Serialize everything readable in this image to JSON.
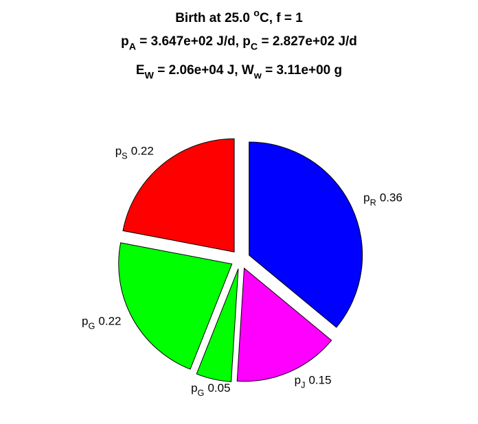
{
  "chart_data": {
    "type": "pie",
    "title": [
      [
        {
          "text": "Birth at 25.0 "
        },
        {
          "text": "o",
          "sup": true
        },
        {
          "text": "C, f = 1"
        }
      ],
      [
        {
          "text": "p"
        },
        {
          "text": "A",
          "sub": true
        },
        {
          "text": " = 3.647e+02 J/d, p"
        },
        {
          "text": "C",
          "sub": true
        },
        {
          "text": " = 2.827e+02 J/d"
        }
      ],
      [
        {
          "text": "E"
        },
        {
          "text": "W",
          "sub": true
        },
        {
          "text": " = 2.06e+04 J, W"
        },
        {
          "text": "w",
          "sub": true
        },
        {
          "text": " = 3.11e+00 g"
        }
      ]
    ],
    "categories": [
      [
        {
          "text": "p"
        },
        {
          "text": "R",
          "sub": true
        }
      ],
      [
        {
          "text": "p"
        },
        {
          "text": "J",
          "sub": true
        }
      ],
      [
        {
          "text": "p"
        },
        {
          "text": "G",
          "sub": true
        }
      ],
      [
        {
          "text": "p"
        },
        {
          "text": "G",
          "sub": true
        }
      ],
      [
        {
          "text": "p"
        },
        {
          "text": "S",
          "sub": true
        }
      ]
    ],
    "values": [
      0.36,
      0.15,
      0.05,
      0.22,
      0.22
    ],
    "colors": [
      "#0000ff",
      "#ff00ff",
      "#00ff00",
      "#00ff00",
      "#ff0000"
    ],
    "explode": true
  }
}
